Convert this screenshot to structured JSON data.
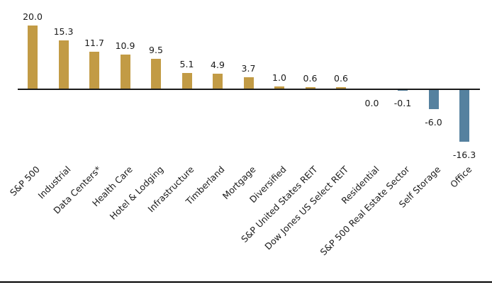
{
  "chart_data": {
    "type": "bar",
    "title": "",
    "xlabel": "",
    "ylabel": "",
    "categories": [
      "S&P 500",
      "Industrial",
      "Data Centers*",
      "Health Care",
      "Hotel & Lodging",
      "Infrastructure",
      "Timberland",
      "Mortgage",
      "Diversified",
      "S&P United States REIT",
      "Dow Jones US Select REIT",
      "Residential",
      "S&P 500 Real Estate Sector",
      "Self Storage",
      "Office"
    ],
    "values": [
      20.0,
      15.3,
      11.7,
      10.9,
      9.5,
      5.1,
      4.9,
      3.7,
      1.0,
      0.6,
      0.6,
      0.0,
      -0.1,
      -6.0,
      -16.3
    ],
    "value_labels": [
      "20.0",
      "15.3",
      "11.7",
      "10.9",
      "9.5",
      "5.1",
      "4.9",
      "3.7",
      "1.0",
      "0.6",
      "0.6",
      "0.0",
      "-0.1",
      "-6.0",
      "-16.3"
    ],
    "ylim": [
      -16.3,
      20.0
    ],
    "grid": false,
    "legend": "none",
    "value_label_position": "outside-end",
    "category_label_rotation_deg": 45,
    "positive_color": "#C29B45",
    "negative_color": "#55819F",
    "axis_line_color": "#1A1A1A",
    "bottom_rule_color": "#000000",
    "text_color": "#1A1A1A"
  }
}
